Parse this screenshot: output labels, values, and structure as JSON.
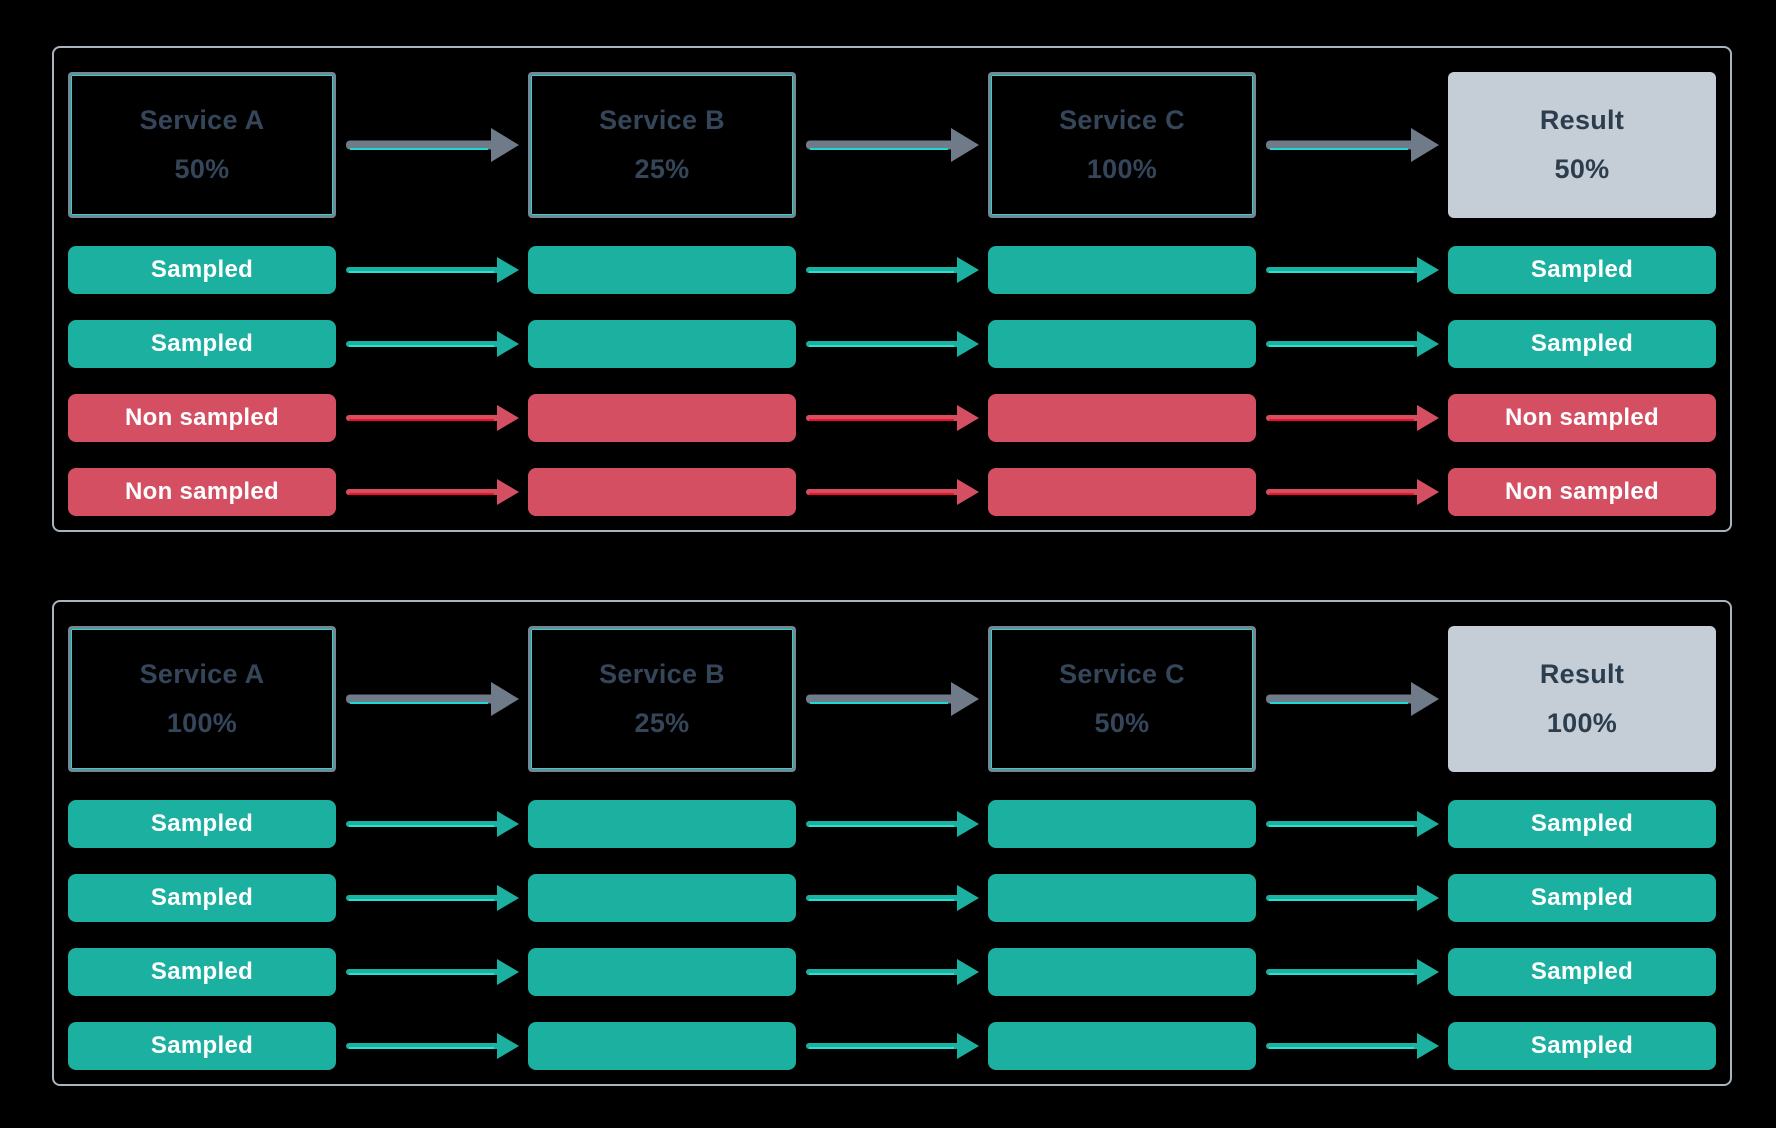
{
  "colors": {
    "background": "#000000",
    "panel_border": "#aab4c1",
    "service_box_border": "#788592",
    "service_box_accent": "#20d8d2",
    "service_text": "#35465a",
    "result_fill": "#c5cdd6",
    "result_text": "#2c3d4e",
    "sampled_fill": "#1cb0a0",
    "non_sampled_fill": "#d54f63",
    "bar_text": "#ffffff",
    "arrow_gray": "#6f7b89",
    "arrow_teal_accent": "#2ae0d4",
    "arrow_red_accent": "#f40e24"
  },
  "panels": [
    {
      "header": [
        {
          "label": "Service A",
          "value": "50%"
        },
        {
          "label": "Service B",
          "value": "25%"
        },
        {
          "label": "Service C",
          "value": "100%"
        },
        {
          "label": "Result",
          "value": "50%"
        }
      ],
      "rows": [
        {
          "label": "Sampled",
          "status": "sampled"
        },
        {
          "label": "Sampled",
          "status": "sampled"
        },
        {
          "label": "Non sampled",
          "status": "non-sampled"
        },
        {
          "label": "Non sampled",
          "status": "non-sampled"
        }
      ]
    },
    {
      "header": [
        {
          "label": "Service A",
          "value": "100%"
        },
        {
          "label": "Service B",
          "value": "25%"
        },
        {
          "label": "Service C",
          "value": "50%"
        },
        {
          "label": "Result",
          "value": "100%"
        }
      ],
      "rows": [
        {
          "label": "Sampled",
          "status": "sampled"
        },
        {
          "label": "Sampled",
          "status": "sampled"
        },
        {
          "label": "Sampled",
          "status": "sampled"
        },
        {
          "label": "Sampled",
          "status": "sampled"
        }
      ]
    }
  ]
}
